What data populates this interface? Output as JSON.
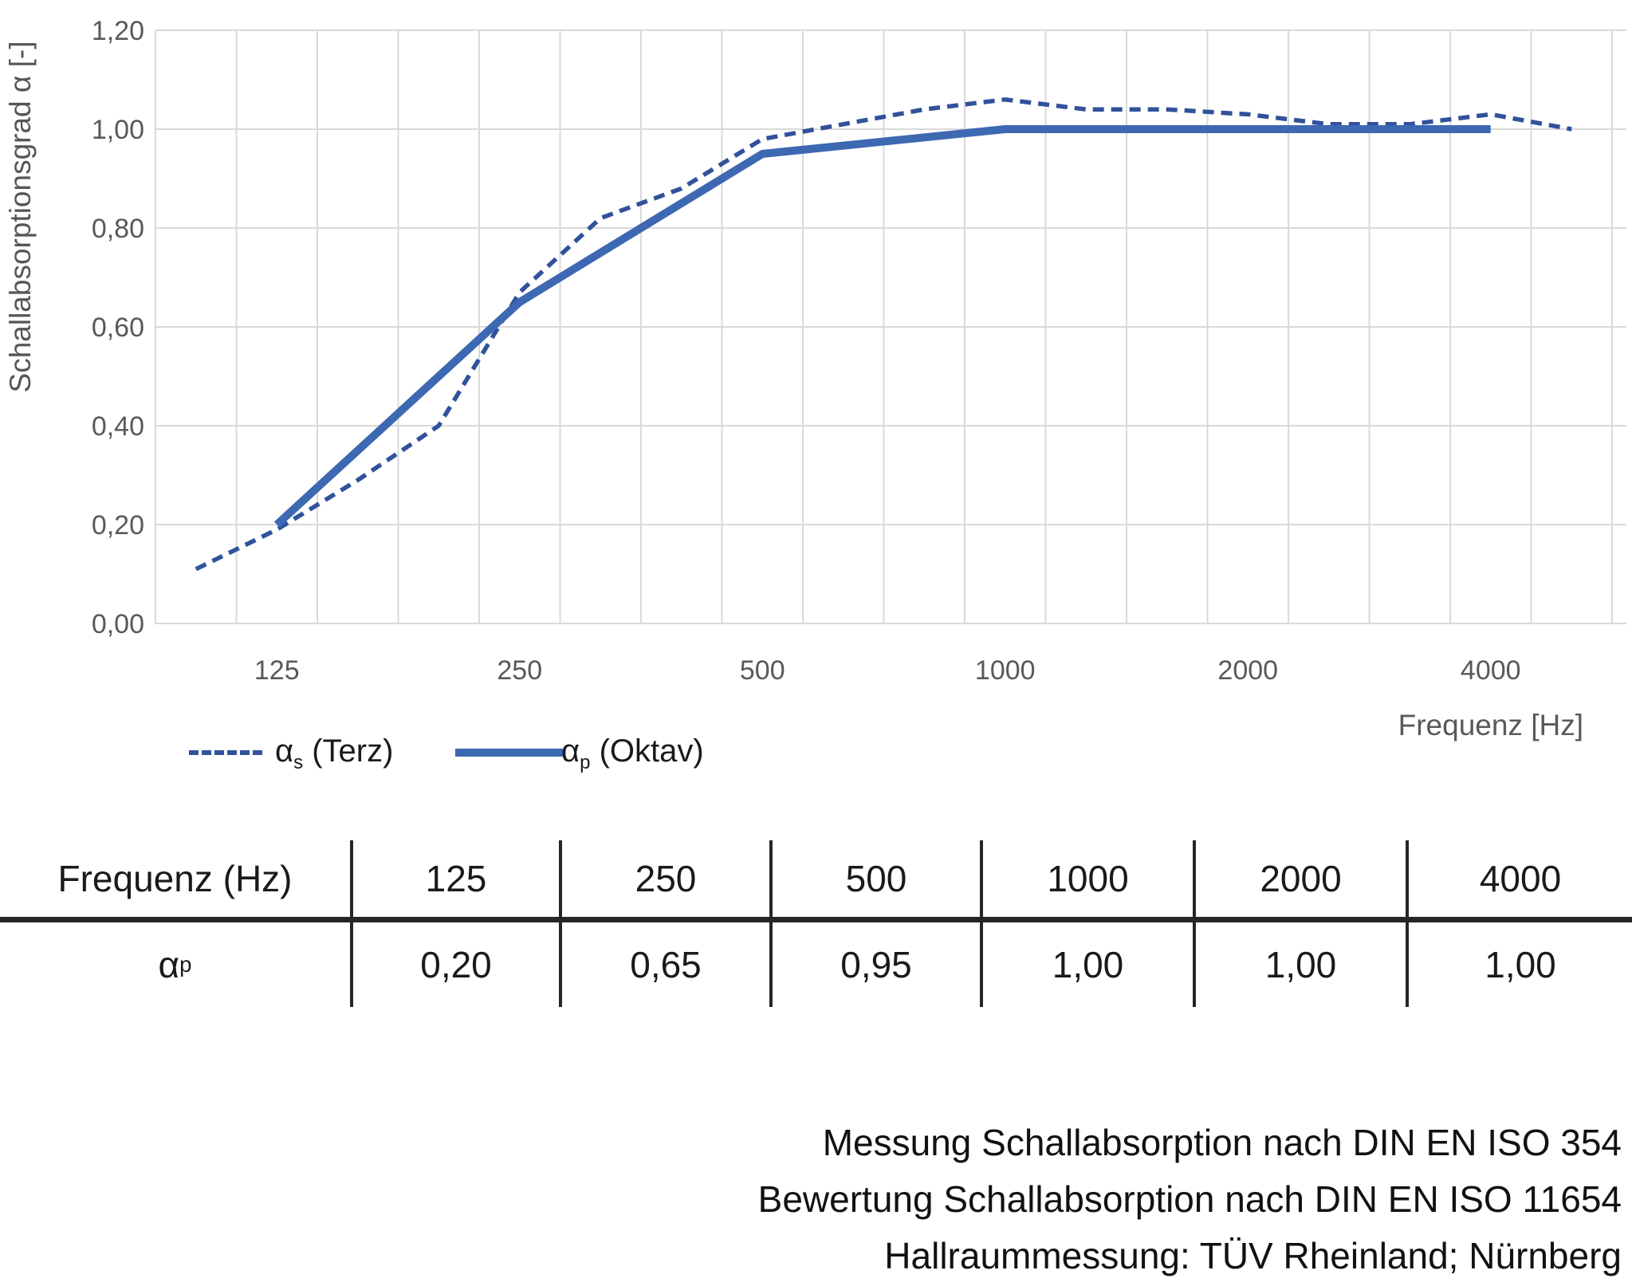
{
  "colors": {
    "series_solid": "#3D68B2",
    "series_dashed": "#31529B",
    "grid": "#D9D9D9",
    "axis_text": "#595959",
    "text": "#1A1A1A"
  },
  "chart_data": {
    "type": "line",
    "title": "",
    "xlabel": "Frequenz [Hz]",
    "ylabel": "Schallabsorptionsgrad α [-]",
    "ylim": [
      0,
      1.2
    ],
    "grid": true,
    "x_axis_scale": "third-octave categories",
    "categories": [
      100,
      125,
      160,
      200,
      250,
      315,
      400,
      500,
      630,
      800,
      1000,
      1250,
      1600,
      2000,
      2500,
      3150,
      4000,
      5000
    ],
    "y_ticks": [
      {
        "label": "0,00",
        "value": 0.0
      },
      {
        "label": "0,20",
        "value": 0.2
      },
      {
        "label": "0,40",
        "value": 0.4
      },
      {
        "label": "0,60",
        "value": 0.6
      },
      {
        "label": "0,80",
        "value": 0.8
      },
      {
        "label": "1,00",
        "value": 1.0
      },
      {
        "label": "1,20",
        "value": 1.2
      }
    ],
    "x_ticks": [
      {
        "label": "125",
        "freq": 125
      },
      {
        "label": "250",
        "freq": 250
      },
      {
        "label": "500",
        "freq": 500
      },
      {
        "label": "1000",
        "freq": 1000
      },
      {
        "label": "2000",
        "freq": 2000
      },
      {
        "label": "4000",
        "freq": 4000
      }
    ],
    "series": [
      {
        "name": "αs (Terz)",
        "line_style": "dashed",
        "color": "#31529B",
        "frequencies": [
          100,
          125,
          160,
          200,
          250,
          315,
          400,
          500,
          630,
          800,
          1000,
          1250,
          1600,
          2000,
          2500,
          3150,
          4000,
          5000
        ],
        "values": [
          0.11,
          0.19,
          0.29,
          0.4,
          0.67,
          0.82,
          0.88,
          0.98,
          1.01,
          1.04,
          1.06,
          1.04,
          1.04,
          1.03,
          1.01,
          1.01,
          1.03,
          1.0
        ]
      },
      {
        "name": "αp (Oktav)",
        "line_style": "solid",
        "color": "#3D68B2",
        "frequencies": [
          125,
          250,
          500,
          1000,
          2000,
          4000
        ],
        "values": [
          0.2,
          0.65,
          0.95,
          1.0,
          1.0,
          1.0
        ]
      }
    ],
    "legend_position": "bottom-left"
  },
  "legend": {
    "items": [
      {
        "alpha": "α",
        "sub": "s",
        "rest": " (Terz)",
        "style": "dashed"
      },
      {
        "alpha": "α",
        "sub": "p",
        "rest": " (Oktav)",
        "style": "solid"
      }
    ]
  },
  "table": {
    "header_label": "Frequenz (Hz)",
    "frequencies": [
      "125",
      "250",
      "500",
      "1000",
      "2000",
      "4000"
    ],
    "row_label_alpha": "α",
    "row_label_sub": "p",
    "values": [
      "0,20",
      "0,65",
      "0,95",
      "1,00",
      "1,00",
      "1,00"
    ]
  },
  "footnote": {
    "lines": [
      "Messung Schallabsorption nach DIN EN ISO 354",
      "Bewertung Schallabsorption nach DIN EN ISO 11654",
      "Hallraummessung: TÜV Rheinland; Nürnberg"
    ]
  }
}
